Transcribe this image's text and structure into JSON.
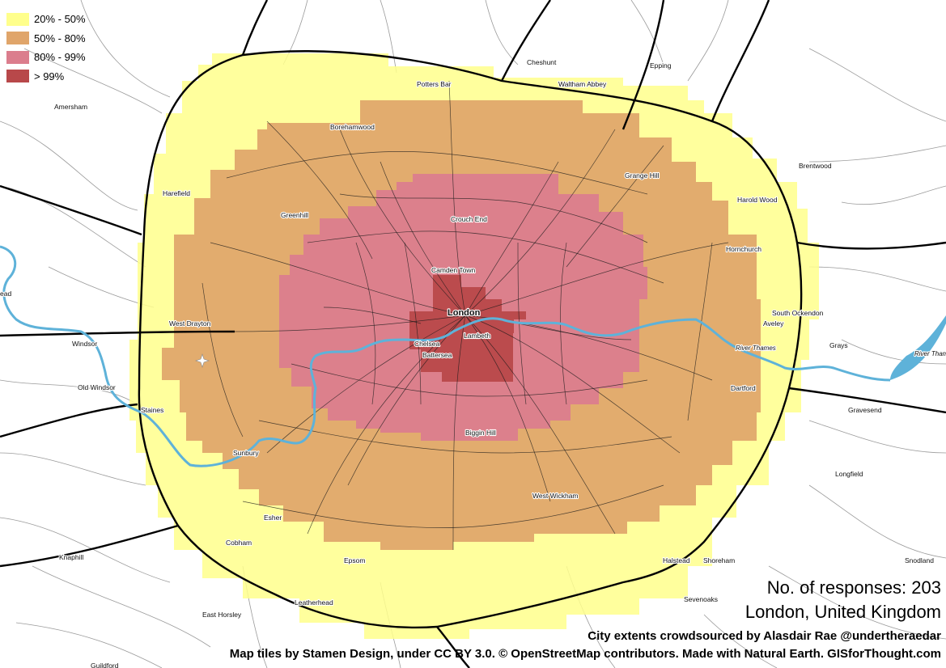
{
  "legend": {
    "items": [
      {
        "label": "20% - 50%",
        "color": "#ffff8c"
      },
      {
        "label": "50% - 80%",
        "color": "#e0a56a"
      },
      {
        "label": "80% - 99%",
        "color": "#db7d8d"
      },
      {
        "label": "> 99%",
        "color": "#b8484a"
      }
    ]
  },
  "info": {
    "responses": "No. of responses: 203",
    "city": "London, United Kingdom",
    "crowdsource_credit": "City extents crowdsourced by Alasdair Rae @undertheraedar",
    "tiles_credit": "Map tiles by Stamen Design, under CC BY 3.0. © OpenStreetMap contributors. Made with Natural Earth. GISforThought.com"
  },
  "places": [
    {
      "name": "London",
      "major": true
    },
    {
      "name": "Camden Town"
    },
    {
      "name": "Chelsea"
    },
    {
      "name": "Lambeth"
    },
    {
      "name": "Battersea"
    },
    {
      "name": "Crouch End"
    },
    {
      "name": "Biggin Hill"
    },
    {
      "name": "West Wickham"
    },
    {
      "name": "Potters Bar"
    },
    {
      "name": "Cheshunt"
    },
    {
      "name": "Epping"
    },
    {
      "name": "Waltham Abbey"
    },
    {
      "name": "Borehamwood"
    },
    {
      "name": "Amersham"
    },
    {
      "name": "Harefield"
    },
    {
      "name": "Greenhill"
    },
    {
      "name": "Grange Hill"
    },
    {
      "name": "Brentwood"
    },
    {
      "name": "Harold Wood"
    },
    {
      "name": "Hornchurch"
    },
    {
      "name": "South Ockendon"
    },
    {
      "name": "Aveley"
    },
    {
      "name": "Grays"
    },
    {
      "name": "Dartford"
    },
    {
      "name": "Gravesend"
    },
    {
      "name": "Longfield"
    },
    {
      "name": "Snodland"
    },
    {
      "name": "Halstead"
    },
    {
      "name": "Shoreham"
    },
    {
      "name": "Sevenoaks"
    },
    {
      "name": "West Drayton"
    },
    {
      "name": "Windsor"
    },
    {
      "name": "Old Windsor"
    },
    {
      "name": "Staines"
    },
    {
      "name": "Sunbury"
    },
    {
      "name": "Esher"
    },
    {
      "name": "Cobham"
    },
    {
      "name": "Epsom"
    },
    {
      "name": "Knaphill"
    },
    {
      "name": "East Horsley"
    },
    {
      "name": "Leatherhead"
    },
    {
      "name": "Guildford"
    },
    {
      "name": "River Thames",
      "river": true
    },
    {
      "name": "River Thames",
      "river": true
    },
    {
      "name": "ead"
    }
  ]
}
